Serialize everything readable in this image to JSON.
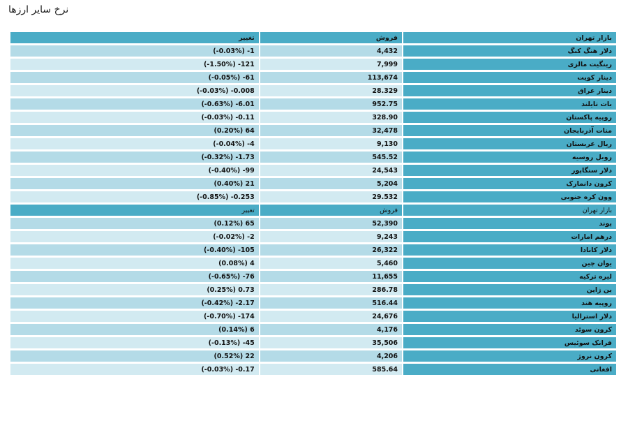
{
  "page": {
    "title": "نرخ سایر ارزها"
  },
  "colors": {
    "header_bg": "#4aacc6",
    "row_odd_bg": "#b4dbe7",
    "row_even_bg": "#d2eaf1"
  },
  "sections": [
    {
      "header": {
        "market": "بازار تهران",
        "sell": "فروش",
        "change": "تغییر"
      },
      "rows": [
        {
          "name": "دلار هنگ کنگ",
          "sell": "4,432",
          "change": "1- (0.03%-)"
        },
        {
          "name": "رینگیت مالزی",
          "sell": "7,999",
          "change": "121- (1.50%-)"
        },
        {
          "name": "دینار کویت",
          "sell": "113,674",
          "change": "61- (0.05%-)"
        },
        {
          "name": "دینار عراق",
          "sell": "28.329",
          "change": "0.008- (0.03%-)"
        },
        {
          "name": "بات تایلند",
          "sell": "952.75",
          "change": "6.01- (0.63%-)"
        },
        {
          "name": "روپیه پاکستان",
          "sell": "328.90",
          "change": "0.11- (0.03%-)"
        },
        {
          "name": "منات آذربایجان",
          "sell": "32,478",
          "change": "64 (0.20%)"
        },
        {
          "name": "ریال عربستان",
          "sell": "9,130",
          "change": "4- (0.04%-)"
        },
        {
          "name": "روبل روسیه",
          "sell": "545.52",
          "change": "1.73- (0.32%-)"
        },
        {
          "name": "دلار سنگاپور",
          "sell": "24,543",
          "change": "99- (0.40%-)"
        },
        {
          "name": "کرون دانمارک",
          "sell": "5,204",
          "change": "21 (0.40%)"
        },
        {
          "name": "وون کره جنوبی",
          "sell": "29.532",
          "change": "0.253- (0.85%-)"
        }
      ]
    },
    {
      "header": {
        "market": "بازار تهران",
        "sell": "فروش",
        "change": "تغییر"
      },
      "rows": [
        {
          "name": "پوند",
          "sell": "52,390",
          "change": "65 (0.12%)"
        },
        {
          "name": "درهم امارات",
          "sell": "9,243",
          "change": "2- (0.02%-)"
        },
        {
          "name": "دلار کانادا",
          "sell": "26,322",
          "change": "105- (0.40%-)"
        },
        {
          "name": "یوان چین",
          "sell": "5,460",
          "change": "4 (0.08%)"
        },
        {
          "name": "لیره ترکیه",
          "sell": "11,655",
          "change": "76- (0.65%-)"
        },
        {
          "name": "ین ژاپن",
          "sell": "286.78",
          "change": "0.73 (0.25%)"
        },
        {
          "name": "روپیه هند",
          "sell": "516.44",
          "change": "2.17- (0.42%-)"
        },
        {
          "name": "دلار استرالیا",
          "sell": "24,676",
          "change": "174- (0.70%-)"
        },
        {
          "name": "کرون سوئد",
          "sell": "4,176",
          "change": "6 (0.14%)"
        },
        {
          "name": "فرانک سوئیس",
          "sell": "35,506",
          "change": "45- (0.13%-)"
        },
        {
          "name": "کرون نروژ",
          "sell": "4,206",
          "change": "22 (0.52%)"
        },
        {
          "name": "افغانی",
          "sell": "585.64",
          "change": "0.17- (0.03%-)"
        }
      ]
    }
  ]
}
